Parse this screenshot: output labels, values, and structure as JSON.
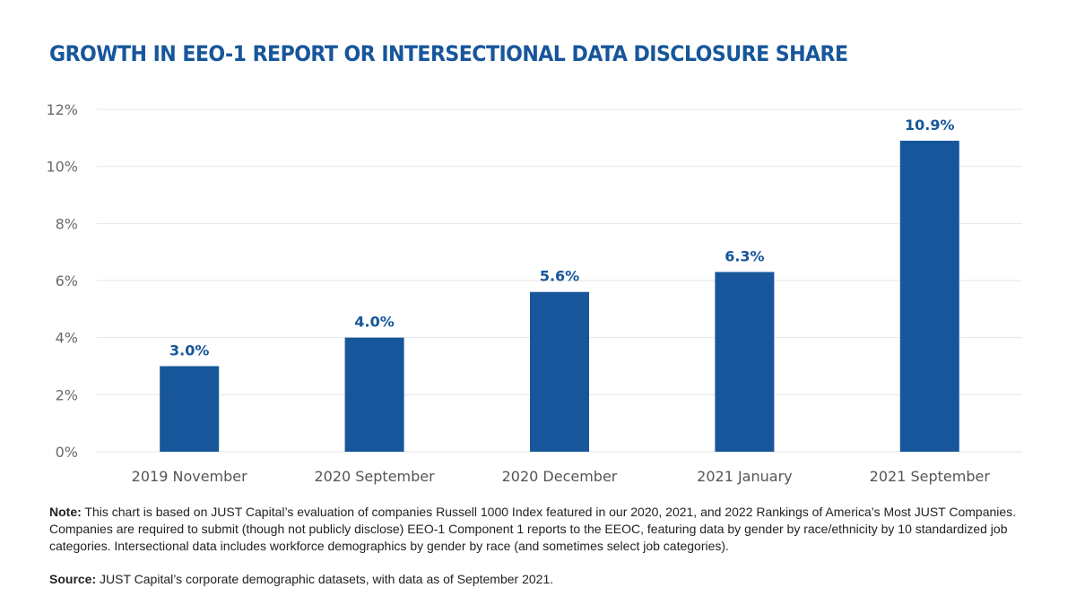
{
  "chart_data": {
    "type": "bar",
    "title": "GROWTH IN EEO-1 REPORT OR INTERSECTIONAL DATA DISCLOSURE SHARE",
    "categories": [
      "2019 November",
      "2020 September",
      "2020 December",
      "2021 January",
      "2021 September"
    ],
    "values": [
      3.0,
      4.0,
      5.6,
      6.3,
      10.9
    ],
    "data_labels": [
      "3.0%",
      "4.0%",
      "5.6%",
      "6.3%",
      "10.9%"
    ],
    "ylim": [
      0,
      12
    ],
    "yticks": [
      0,
      2,
      4,
      6,
      8,
      10,
      12
    ],
    "ytick_labels": [
      "0%",
      "2%",
      "4%",
      "6%",
      "8%",
      "10%",
      "12%"
    ],
    "xlabel": "",
    "ylabel": "",
    "grid": true,
    "bar_color": "#17569b"
  },
  "note": {
    "label": "Note:",
    "text": " This chart is based on JUST Capital’s evaluation of companies Russell 1000 Index featured in our 2020, 2021, and 2022 Rankings of America’s Most JUST Companies. Companies are required to submit (though not publicly disclose) EEO-1 Component 1 reports to the EEOC, featuring data by gender by race/ethnicity by 10 standardized job categories. Intersectional data includes workforce demographics by gender by race (and sometimes select job categories)."
  },
  "source": {
    "label": "Source:",
    "text": " JUST Capital’s corporate demographic datasets, with data as of September 2021."
  },
  "colors": {
    "title": "#17569b",
    "bars": "#17569b",
    "gridline": "#e6e6e6",
    "tick_text": "#6b6b6b"
  }
}
